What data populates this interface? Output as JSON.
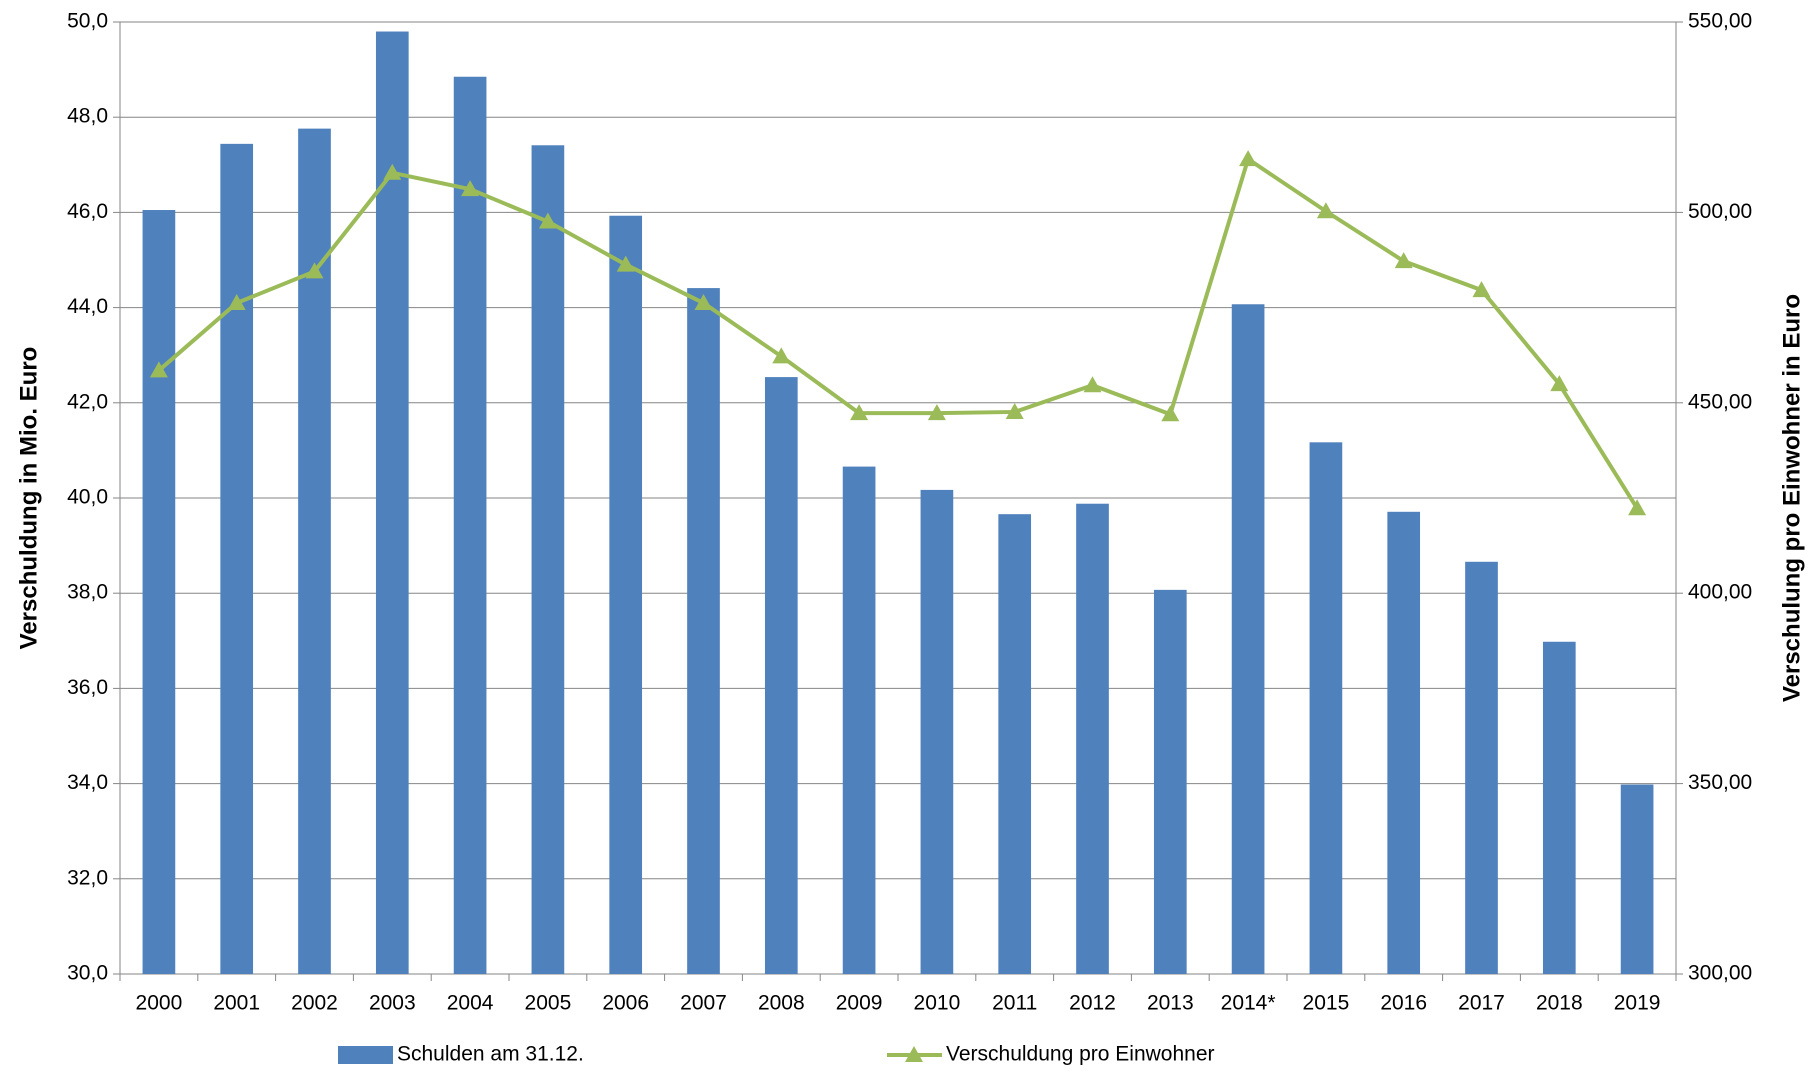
{
  "chart_data": {
    "type": "bar_line",
    "categories": [
      "2000",
      "2001",
      "2002",
      "2003",
      "2004",
      "2005",
      "2006",
      "2007",
      "2008",
      "2009",
      "2010",
      "2011",
      "2012",
      "2013",
      "2014*",
      "2015",
      "2016",
      "2017",
      "2018",
      "2019"
    ],
    "ylabel": "Verschuldung in Mio. Euro",
    "y2label": "Verschulung pro Einwohner in Euro",
    "ylim": [
      30,
      50
    ],
    "yticks": [
      {
        "value": 30,
        "label": "30,0"
      },
      {
        "value": 32,
        "label": "32,0"
      },
      {
        "value": 34,
        "label": "34,0"
      },
      {
        "value": 36,
        "label": "36,0"
      },
      {
        "value": 38,
        "label": "38,0"
      },
      {
        "value": 40,
        "label": "40,0"
      },
      {
        "value": 42,
        "label": "42,0"
      },
      {
        "value": 44,
        "label": "44,0"
      },
      {
        "value": 46,
        "label": "46,0"
      },
      {
        "value": 48,
        "label": "48,0"
      },
      {
        "value": 50,
        "label": "50,0"
      }
    ],
    "y2lim": [
      300,
      550
    ],
    "y2ticks": [
      {
        "value": 300,
        "label": "300,00"
      },
      {
        "value": 350,
        "label": "350,00"
      },
      {
        "value": 400,
        "label": "400,00"
      },
      {
        "value": 450,
        "label": "450,00"
      },
      {
        "value": 500,
        "label": "500,00"
      },
      {
        "value": 550,
        "label": "550,00"
      }
    ],
    "grid": true,
    "legend": "bottom",
    "series": [
      {
        "name": "Schulden am 31.12.",
        "type": "bar",
        "color": "#4f81bd",
        "values": [
          46.05,
          47.44,
          47.76,
          49.8,
          48.85,
          47.41,
          45.93,
          44.41,
          42.54,
          40.66,
          40.17,
          39.66,
          39.88,
          38.07,
          44.07,
          41.17,
          39.71,
          38.66,
          36.98,
          33.98
        ]
      },
      {
        "name": "Verschuldung pro Einwohner",
        "type": "line",
        "axis": "y2",
        "color": "#9bbb59",
        "values": [
          458.5,
          476.2,
          484.5,
          510.4,
          506.1,
          497.6,
          486.3,
          476.2,
          462.2,
          447.3,
          447.3,
          447.6,
          454.6,
          447.0,
          514.0,
          500.3,
          487.2,
          479.6,
          454.9,
          422.3
        ]
      }
    ]
  }
}
